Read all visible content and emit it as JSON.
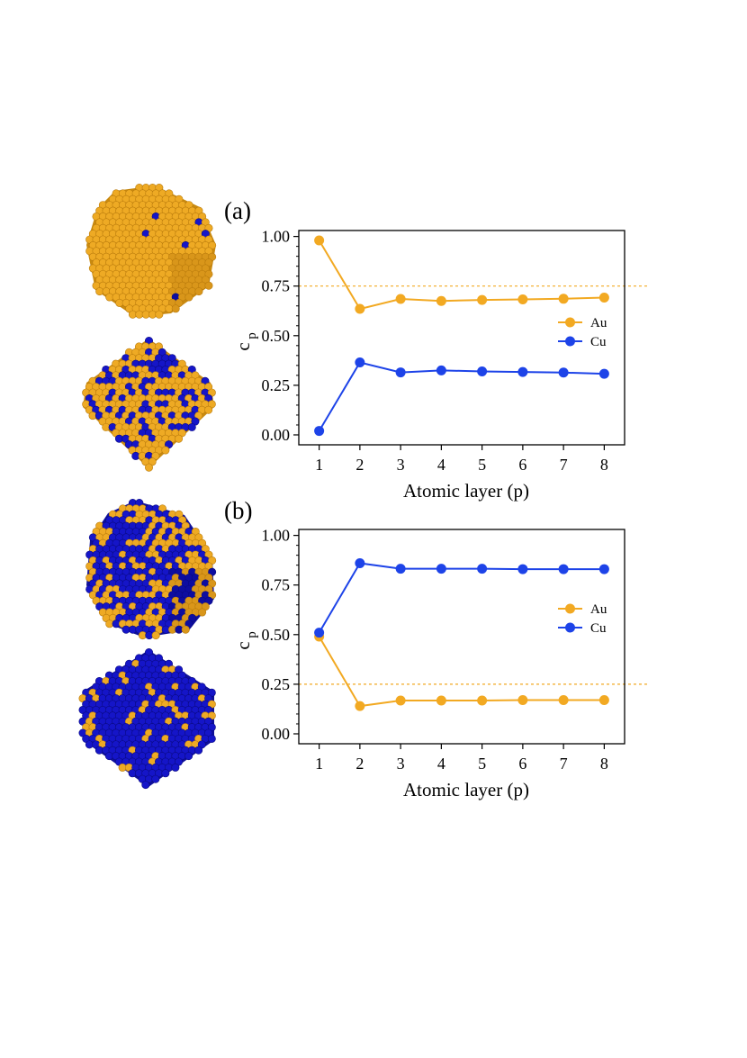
{
  "colors": {
    "au": "#f2a922",
    "cu": "#1d43e8",
    "au_atom": "#eeaa24",
    "cu_atom": "#1515c8"
  },
  "particle_icons": [
    "au-rich-particle-3d-icon",
    "au-rich-particle-slice-icon",
    "cu-rich-particle-3d-icon",
    "cu-rich-particle-slice-icon"
  ],
  "chart_data": [
    {
      "type": "line",
      "panel_label": "(a)",
      "x": [
        1,
        2,
        3,
        4,
        5,
        6,
        7,
        8
      ],
      "xlabel": "Atomic layer (p)",
      "ylabel_main": "c",
      "ylabel_sub": "p",
      "xlim": [
        0.5,
        8.5
      ],
      "ylim": [
        -0.05,
        1.03
      ],
      "yticks": [
        "0.00",
        "0.25",
        "0.50",
        "0.75",
        "1.00"
      ],
      "ytick_values": [
        0,
        0.25,
        0.5,
        0.75,
        1.0
      ],
      "reference_line": 0.75,
      "legend_position": "right",
      "series": [
        {
          "name": "Au",
          "color": "#f2a922",
          "values": [
            0.98,
            0.635,
            0.685,
            0.675,
            0.68,
            0.683,
            0.686,
            0.692
          ]
        },
        {
          "name": "Cu",
          "color": "#1d43e8",
          "values": [
            0.02,
            0.365,
            0.315,
            0.325,
            0.32,
            0.317,
            0.314,
            0.308
          ]
        }
      ]
    },
    {
      "type": "line",
      "panel_label": "(b)",
      "x": [
        1,
        2,
        3,
        4,
        5,
        6,
        7,
        8
      ],
      "xlabel": "Atomic layer (p)",
      "ylabel_main": "c",
      "ylabel_sub": "p",
      "xlim": [
        0.5,
        8.5
      ],
      "ylim": [
        -0.05,
        1.03
      ],
      "yticks": [
        "0.00",
        "0.25",
        "0.50",
        "0.75",
        "1.00"
      ],
      "ytick_values": [
        0,
        0.25,
        0.5,
        0.75,
        1.0
      ],
      "reference_line": 0.25,
      "legend_position": "right",
      "series": [
        {
          "name": "Au",
          "color": "#f2a922",
          "values": [
            0.49,
            0.14,
            0.168,
            0.168,
            0.168,
            0.17,
            0.17,
            0.17
          ]
        },
        {
          "name": "Cu",
          "color": "#1d43e8",
          "values": [
            0.51,
            0.86,
            0.832,
            0.832,
            0.832,
            0.83,
            0.83,
            0.83
          ]
        }
      ]
    }
  ]
}
